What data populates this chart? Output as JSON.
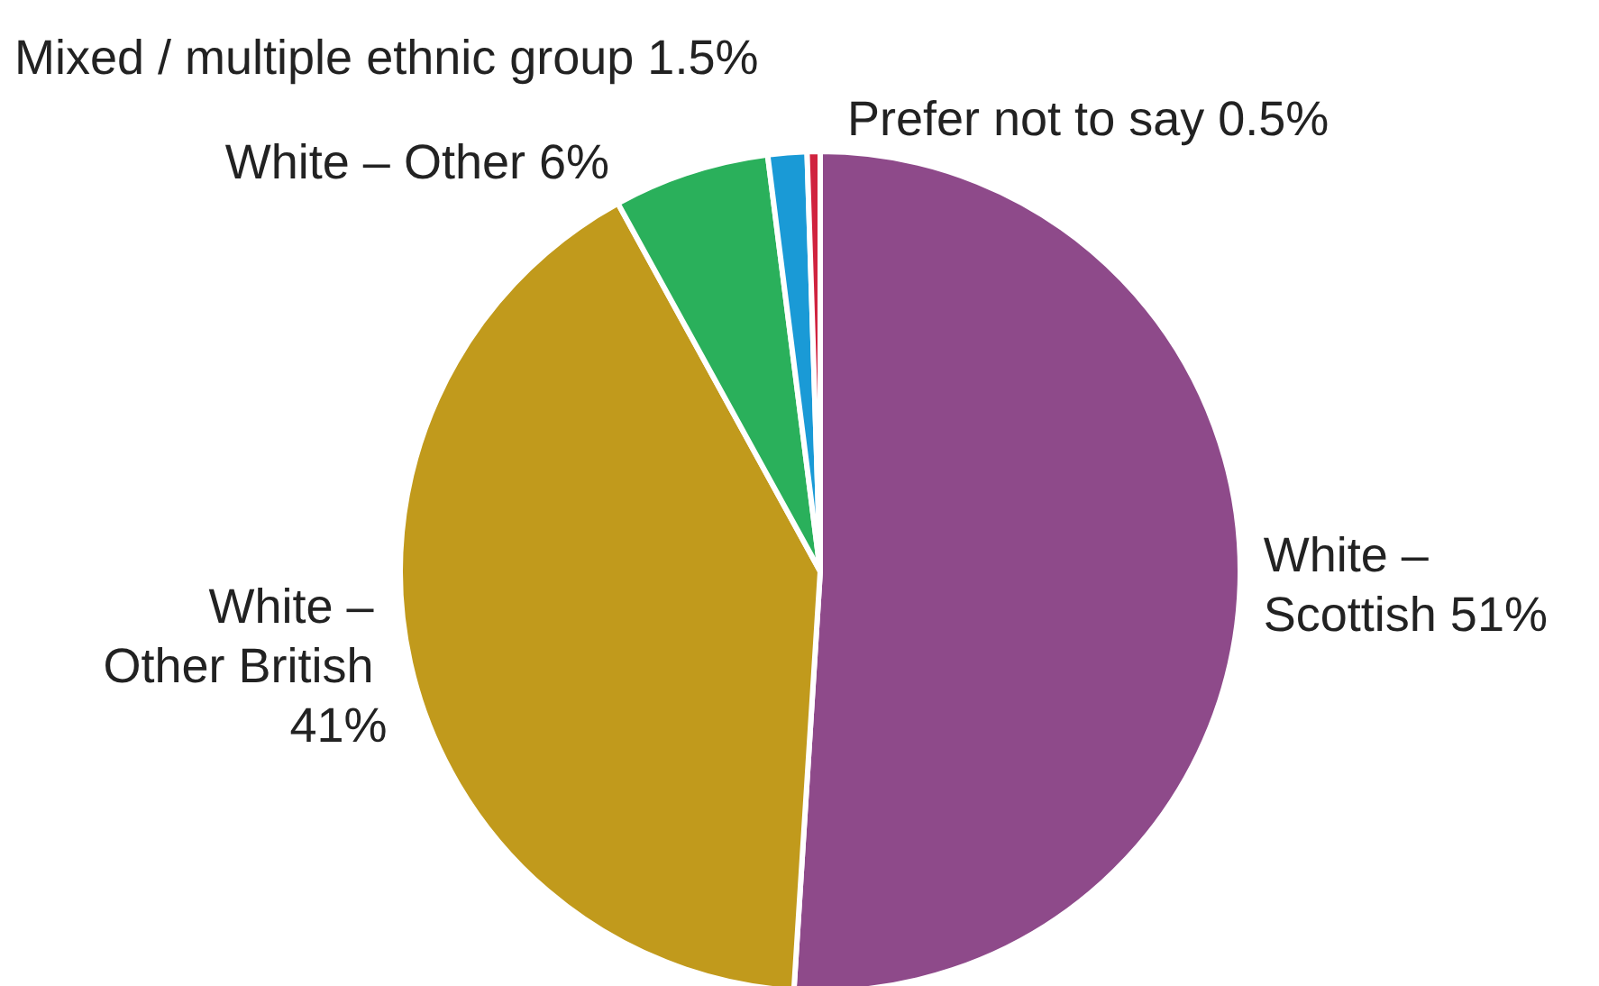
{
  "chart_data": {
    "type": "pie",
    "categories": [
      "White – Scottish",
      "White – Other British",
      "White – Other",
      "Mixed / multiple ethnic group",
      "Prefer not to say"
    ],
    "values": [
      51,
      41,
      6,
      1.5,
      0.5
    ],
    "colors": [
      "#8e4a8a",
      "#c19a1c",
      "#2ab05b",
      "#1a9ad6",
      "#d0233f"
    ],
    "value_labels": [
      "51%",
      "41%",
      "6%",
      "1.5%",
      "0.5%"
    ],
    "legend": false
  }
}
